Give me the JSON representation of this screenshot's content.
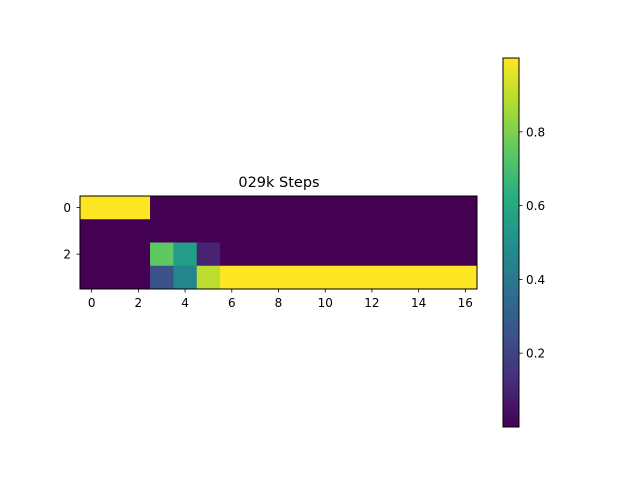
{
  "chart_data": {
    "type": "heatmap",
    "title": "029k Steps",
    "colormap": "viridis",
    "rows": 4,
    "cols": 17,
    "values": [
      [
        1,
        1,
        1,
        0,
        0,
        0,
        0,
        0,
        0,
        0,
        0,
        0,
        0,
        0,
        0,
        0,
        0
      ],
      [
        0,
        0,
        0,
        0,
        0,
        0,
        0,
        0,
        0,
        0,
        0,
        0,
        0,
        0,
        0,
        0,
        0
      ],
      [
        0,
        0,
        0,
        0.75,
        0.55,
        0.1,
        0,
        0,
        0,
        0,
        0,
        0,
        0,
        0,
        0,
        0,
        0
      ],
      [
        0,
        0,
        0,
        0.25,
        0.45,
        0.9,
        1,
        1,
        1,
        1,
        1,
        1,
        1,
        1,
        1,
        1,
        1
      ]
    ],
    "x_ticks": [
      0,
      2,
      4,
      6,
      8,
      10,
      12,
      14,
      16
    ],
    "y_ticks": [
      0,
      2
    ],
    "xlim": [
      -0.5,
      16.5
    ],
    "ylim": [
      3.5,
      -0.5
    ],
    "colorbar": {
      "range": [
        0,
        1
      ],
      "ticks": [
        0.2,
        0.4,
        0.6,
        0.8
      ],
      "tick_labels": [
        "0.2",
        "0.4",
        "0.6",
        "0.8"
      ]
    }
  }
}
